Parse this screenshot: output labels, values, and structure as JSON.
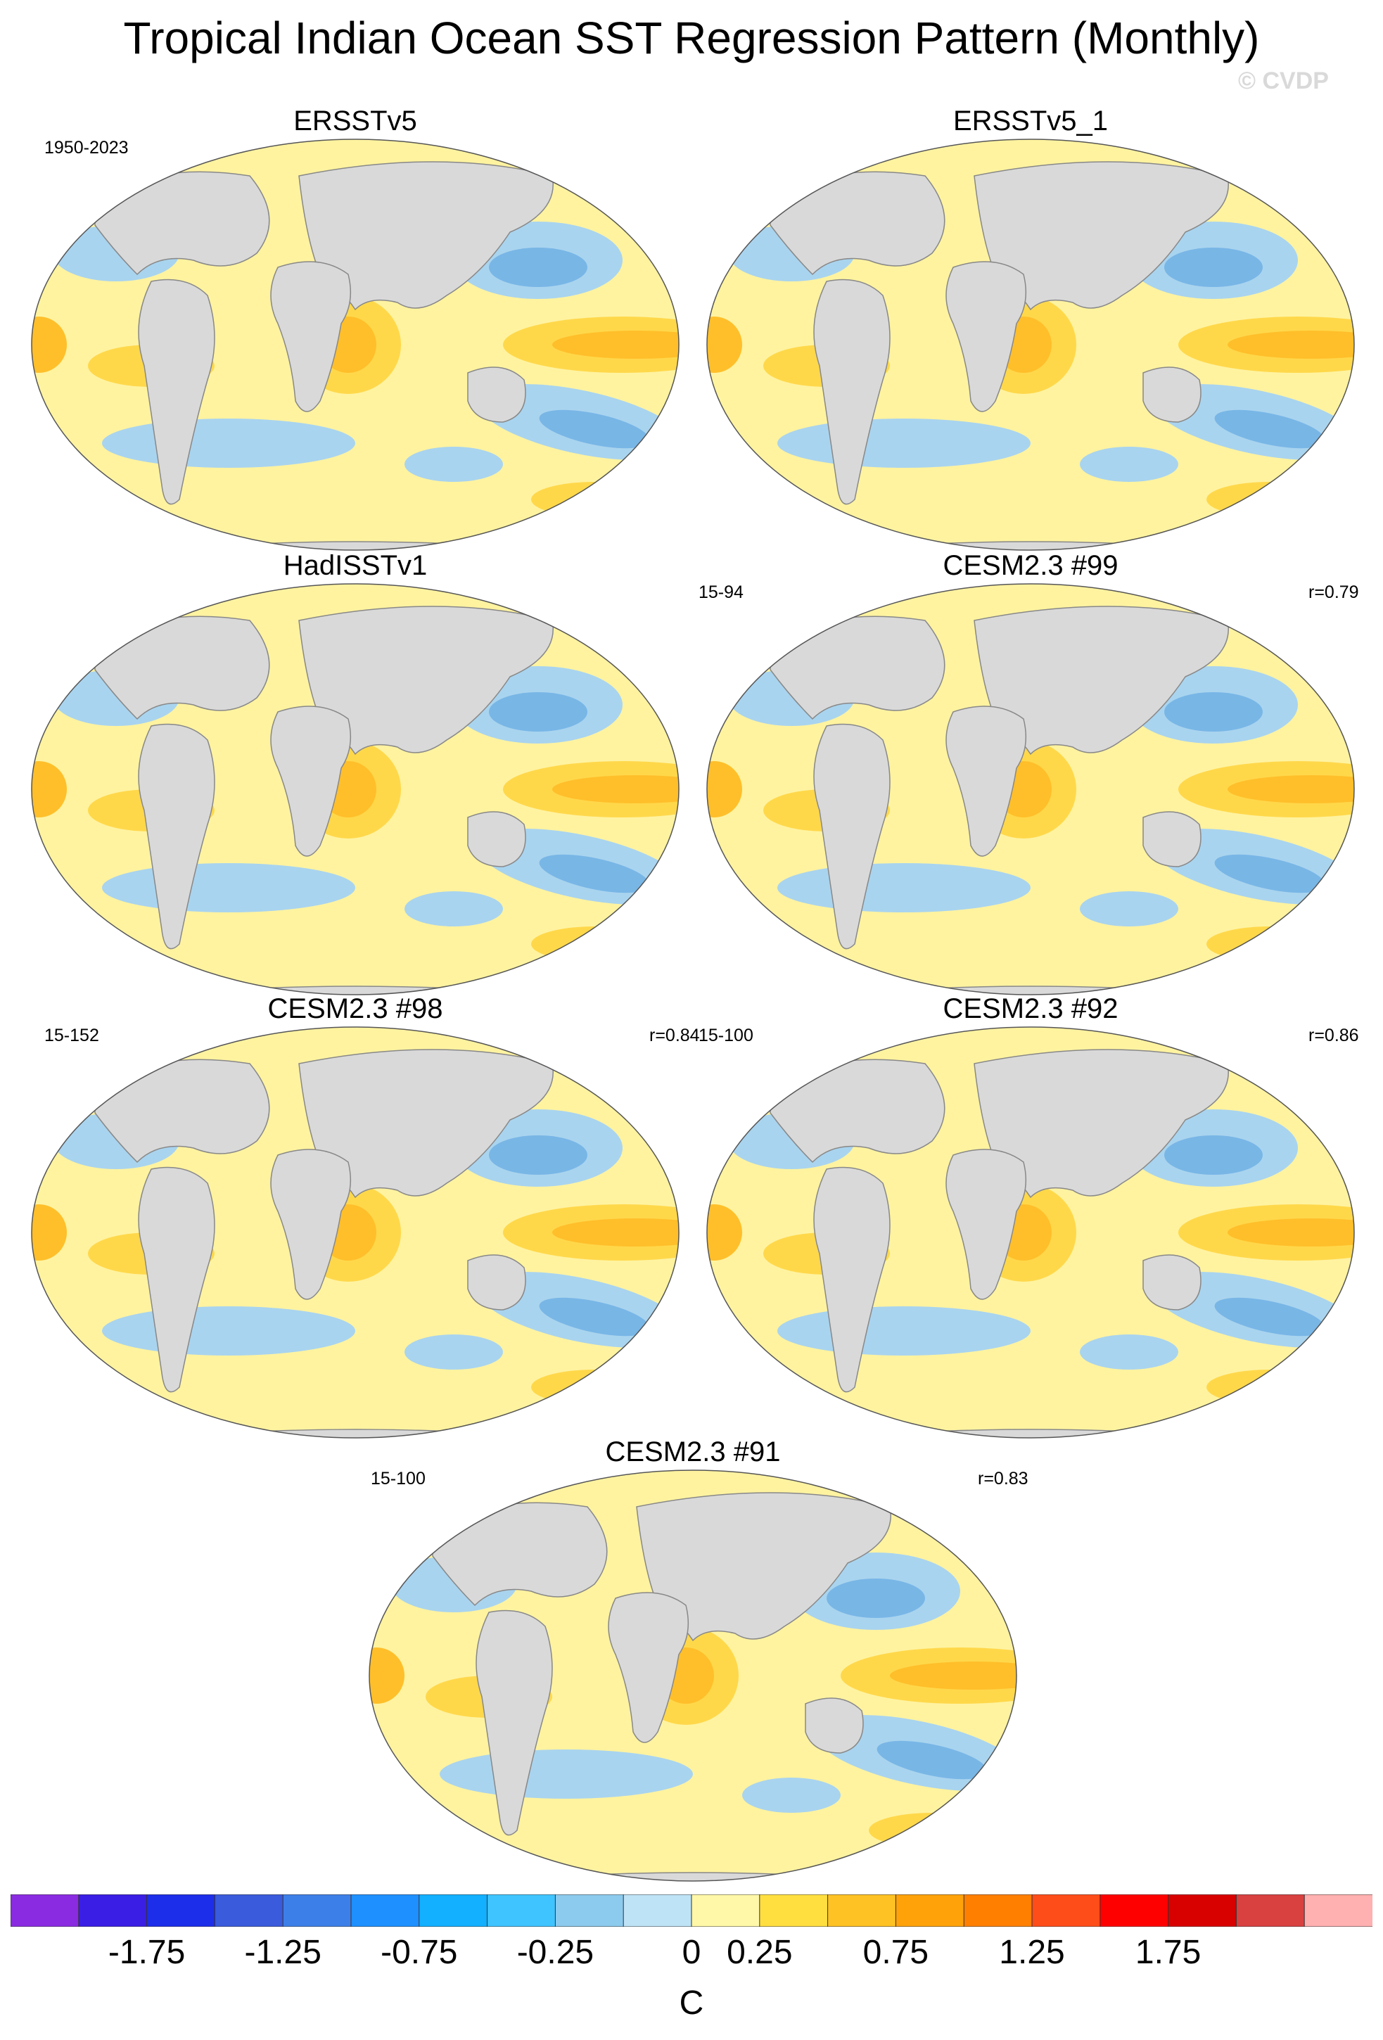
{
  "title": "Tropical Indian Ocean SST Regression Pattern (Monthly)",
  "watermark": "© CVDP",
  "panels": [
    {
      "name": "ERSSTv5",
      "left_note": "1950-2023",
      "right_note": ""
    },
    {
      "name": "ERSSTv5_1",
      "left_note": "",
      "right_note": ""
    },
    {
      "name": "HadISSTv1",
      "left_note": "",
      "right_note": ""
    },
    {
      "name": "CESM2.3 #99",
      "left_note": "15-94",
      "right_note": "r=0.79"
    },
    {
      "name": "CESM2.3 #98",
      "left_note": "15-152",
      "right_note": "r=0.84"
    },
    {
      "name": "CESM2.3 #92",
      "left_note": "15-100",
      "right_note": "r=0.86"
    },
    {
      "name": "CESM2.3 #91",
      "left_note": "15-100",
      "right_note": "r=0.83"
    }
  ],
  "colorbar": {
    "colors": [
      "#8a2be2",
      "#3a1ee6",
      "#1c2eea",
      "#3a5bdc",
      "#3d7fe8",
      "#1e90ff",
      "#12b0ff",
      "#3fc4ff",
      "#8ccbee",
      "#bfe3f6",
      "#fff8a8",
      "#ffdf40",
      "#ffc224",
      "#ffa20a",
      "#ff7f00",
      "#ff4d1a",
      "#ff0000",
      "#d90000",
      "#d94040",
      "#ffb0b0"
    ],
    "tick_labels": [
      "-1.75",
      "-1.25",
      "-0.75",
      "-0.25",
      "0",
      "0.25",
      "0.75",
      "1.25",
      "1.75"
    ],
    "unit": "C"
  },
  "map_colors": {
    "land": "#d9d9d9",
    "coast": "#888888",
    "cool": "#a9d4ef",
    "cool_deep": "#78b6e6",
    "warm": "#fff3a0",
    "warm2": "#ffd84a",
    "warm3": "#ffbf2a",
    "warm4": "#ffa11a"
  }
}
